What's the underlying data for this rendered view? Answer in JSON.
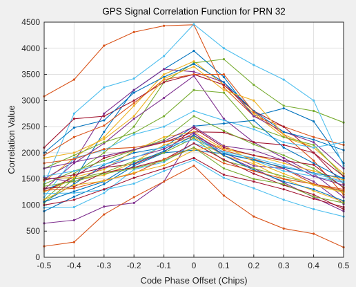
{
  "chart_data": {
    "type": "line",
    "title": "GPS Signal Correlation Function for PRN 32",
    "xlabel": "Code Phase Offset (Chips)",
    "ylabel": "Correlation Value",
    "xlim": [
      -0.5,
      0.5
    ],
    "ylim": [
      0,
      4500
    ],
    "x": [
      -0.5,
      -0.4,
      -0.3,
      -0.2,
      -0.1,
      0,
      0.1,
      0.2,
      0.3,
      0.4,
      0.5
    ],
    "xticks": [
      "-0.5",
      "-0.4",
      "-0.3",
      "-0.2",
      "-0.1",
      "0",
      "0.1",
      "0.2",
      "0.3",
      "0.4",
      "0.5"
    ],
    "yticks": [
      "0",
      "500",
      "1000",
      "1500",
      "2000",
      "2500",
      "3000",
      "3500",
      "4000",
      "4500"
    ],
    "grid": true,
    "series": [
      {
        "color": "#0072bd",
        "values": [
          1300,
          1480,
          2400,
          3200,
          3600,
          3950,
          3450,
          2700,
          2850,
          2600,
          1800
        ]
      },
      {
        "color": "#d95319",
        "values": [
          3080,
          3400,
          4050,
          4310,
          4430,
          4450,
          3250,
          2700,
          2500,
          2300,
          2150
        ]
      },
      {
        "color": "#edb120",
        "values": [
          1450,
          1900,
          2300,
          2900,
          3500,
          3750,
          3300,
          2750,
          2300,
          2100,
          1600
        ]
      },
      {
        "color": "#7e2f8e",
        "values": [
          1500,
          1830,
          2750,
          3200,
          3600,
          3550,
          3350,
          2700,
          2400,
          2200,
          1700
        ]
      },
      {
        "color": "#77ac30",
        "values": [
          1100,
          1600,
          2000,
          2500,
          3350,
          3720,
          3790,
          3300,
          2900,
          2800,
          2580
        ]
      },
      {
        "color": "#4dbeee",
        "values": [
          1400,
          2750,
          3250,
          3420,
          3850,
          4460,
          4000,
          3680,
          3400,
          3000,
          1750
        ]
      },
      {
        "color": "#a2142f",
        "values": [
          2100,
          2650,
          2700,
          3000,
          3350,
          3500,
          3300,
          2800,
          2500,
          2000,
          1400
        ]
      },
      {
        "color": "#0072bd",
        "values": [
          2000,
          2480,
          2620,
          3150,
          3450,
          3700,
          3350,
          2800,
          2400,
          2250,
          2050
        ]
      },
      {
        "color": "#d95319",
        "values": [
          1950,
          2300,
          2520,
          2950,
          3400,
          3500,
          3500,
          2780,
          2350,
          1850,
          1200
        ]
      },
      {
        "color": "#edb120",
        "values": [
          1900,
          2000,
          2260,
          2700,
          3420,
          3650,
          3200,
          3000,
          2350,
          2100,
          1600
        ]
      },
      {
        "color": "#7e2f8e",
        "values": [
          1300,
          1800,
          2180,
          2650,
          3050,
          3470,
          2650,
          2200,
          1900,
          1600,
          1150
        ]
      },
      {
        "color": "#77ac30",
        "values": [
          1700,
          1950,
          2200,
          2380,
          2700,
          3200,
          3150,
          2500,
          2300,
          2150,
          1550
        ]
      },
      {
        "color": "#4dbeee",
        "values": [
          1150,
          1900,
          2050,
          2350,
          2500,
          2800,
          2620,
          2450,
          2200,
          2100,
          2200
        ]
      },
      {
        "color": "#a2142f",
        "values": [
          1250,
          1540,
          1900,
          2060,
          2200,
          2400,
          2390,
          2200,
          2150,
          2000,
          1550
        ]
      },
      {
        "color": "#0072bd",
        "values": [
          1060,
          1400,
          1770,
          2000,
          2100,
          2510,
          2560,
          2620,
          2100,
          1800,
          1500
        ]
      },
      {
        "color": "#d95319",
        "values": [
          1800,
          1880,
          2070,
          2100,
          2200,
          2330,
          2050,
          1880,
          1700,
          1400,
          1300
        ]
      },
      {
        "color": "#edb120",
        "values": [
          1500,
          1530,
          1680,
          2040,
          2300,
          2400,
          2070,
          1950,
          1800,
          1650,
          1480
        ]
      },
      {
        "color": "#7e2f8e",
        "values": [
          650,
          710,
          970,
          1040,
          1450,
          2370,
          2000,
          1750,
          1700,
          1450,
          1020
        ]
      },
      {
        "color": "#77ac30",
        "values": [
          1400,
          1650,
          1850,
          2050,
          2250,
          2700,
          2420,
          2160,
          1950,
          1700,
          1340
        ]
      },
      {
        "color": "#4dbeee",
        "values": [
          950,
          960,
          1230,
          1680,
          1820,
          2180,
          2000,
          1860,
          1650,
          1550,
          1430
        ]
      },
      {
        "color": "#a2142f",
        "values": [
          1480,
          1580,
          1720,
          1780,
          2010,
          2470,
          2100,
          1950,
          1850,
          1770,
          1330
        ]
      },
      {
        "color": "#0072bd",
        "values": [
          880,
          1160,
          1400,
          1750,
          2000,
          2050,
          1980,
          1860,
          1720,
          1610,
          1520
        ]
      },
      {
        "color": "#d95319",
        "values": [
          210,
          290,
          820,
          1150,
          1450,
          1750,
          1180,
          780,
          550,
          450,
          190
        ]
      },
      {
        "color": "#edb120",
        "values": [
          1250,
          1500,
          1570,
          1820,
          2150,
          2300,
          1940,
          1790,
          1500,
          1270,
          1060
        ]
      },
      {
        "color": "#7e2f8e",
        "values": [
          1530,
          1440,
          1720,
          1910,
          2070,
          2380,
          1950,
          1700,
          1430,
          1150,
          880
        ]
      },
      {
        "color": "#77ac30",
        "values": [
          1040,
          1500,
          1620,
          1840,
          2000,
          2280,
          1850,
          1700,
          1550,
          1400,
          1260
        ]
      },
      {
        "color": "#4dbeee",
        "values": [
          1220,
          1230,
          1290,
          1410,
          1650,
          1860,
          1520,
          1320,
          1100,
          920,
          780
        ]
      },
      {
        "color": "#a2142f",
        "values": [
          1320,
          1350,
          1620,
          1720,
          1870,
          2180,
          1870,
          1600,
          1380,
          1200,
          920
        ]
      },
      {
        "color": "#0072bd",
        "values": [
          1060,
          1260,
          1450,
          1800,
          2030,
          2330,
          1950,
          1670,
          1450,
          1300,
          1080
        ]
      },
      {
        "color": "#d95319",
        "values": [
          1280,
          1320,
          1470,
          1600,
          1880,
          2100,
          1800,
          1650,
          1500,
          1400,
          1270
        ]
      },
      {
        "color": "#edb120",
        "values": [
          1100,
          1380,
          1460,
          1620,
          1760,
          2050,
          2140,
          1830,
          1600,
          1380,
          1240
        ]
      },
      {
        "color": "#7e2f8e",
        "values": [
          1700,
          1820,
          1940,
          2060,
          2220,
          2500,
          2130,
          2050,
          1850,
          1550,
          1380
        ]
      },
      {
        "color": "#77ac30",
        "values": [
          1360,
          1450,
          1600,
          1700,
          1850,
          2100,
          1700,
          1500,
          1400,
          1160,
          1040
        ]
      },
      {
        "color": "#4dbeee",
        "values": [
          1550,
          1650,
          1780,
          1900,
          2120,
          2250,
          2020,
          1900,
          1750,
          1600,
          1450
        ]
      },
      {
        "color": "#a2142f",
        "values": [
          1000,
          1100,
          1300,
          1520,
          1700,
          1900,
          1580,
          1450,
          1300,
          1120,
          960
        ]
      }
    ]
  }
}
